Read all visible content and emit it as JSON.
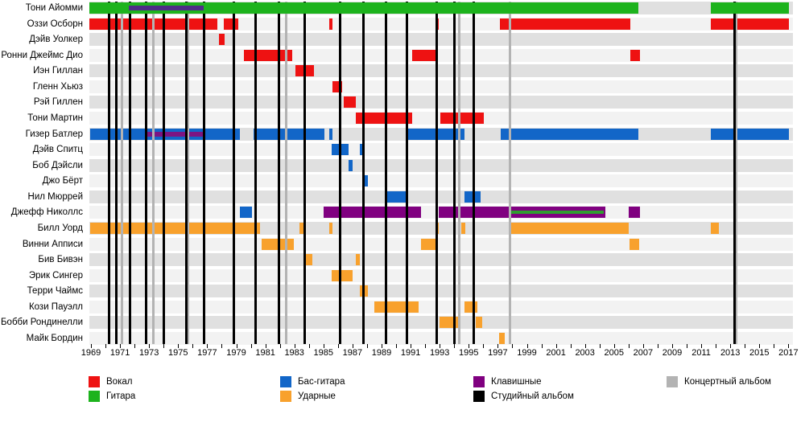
{
  "chart_data": {
    "type": "timeline",
    "title": "",
    "x_axis": {
      "start_year": 1969,
      "end_year": 2017,
      "tick_every_years": 1,
      "label_every_years": 2,
      "labels": [
        1969,
        1971,
        1973,
        1975,
        1977,
        1979,
        1981,
        1983,
        1985,
        1987,
        1989,
        1991,
        1993,
        1995,
        1997,
        1999,
        2001,
        2003,
        2005,
        2007,
        2009,
        2011,
        2013,
        2015,
        2017
      ]
    },
    "colors": {
      "vocals": "#ee1212",
      "guitar": "#1db31d",
      "bass": "#1266c8",
      "drums": "#f8a12d",
      "keyboards": "#800080",
      "keyboards_on_guitar": "#4f2d87",
      "keyboards_on_bass": "#7d1583",
      "guitar_on_keyboards": "#2f9e2f",
      "studio_album_line": "#000000",
      "live_album_line": "#b3b3b3",
      "track_odd": "#e0e0e0",
      "track_even": "#f2f2f2"
    },
    "legend": [
      {
        "label": "Вокал",
        "role": "vocals",
        "col": 0,
        "row": 0
      },
      {
        "label": "Гитара",
        "role": "guitar",
        "col": 0,
        "row": 1
      },
      {
        "label": "Бас-гитара",
        "role": "bass",
        "col": 1,
        "row": 0
      },
      {
        "label": "Ударные",
        "role": "drums",
        "col": 1,
        "row": 1
      },
      {
        "label": "Клавишные",
        "role": "keyboards",
        "col": 2,
        "row": 0
      },
      {
        "label": "Студийный альбом",
        "role": "studio_album_line",
        "col": 2,
        "row": 1
      },
      {
        "label": "Концертный альбом",
        "role": "live_album_line",
        "col": 3,
        "row": 0
      }
    ],
    "albums": {
      "studio_years": [
        1970.27,
        1970.77,
        1971.66,
        1972.77,
        1973.99,
        1975.54,
        1976.76,
        1978.81,
        1980.35,
        1981.96,
        1983.73,
        1986.12,
        1987.78,
        1989.33,
        1990.72,
        1992.82,
        1994.04,
        1995.37,
        2013.27
      ],
      "live_years": [
        1971.11,
        1973.27,
        1975.7,
        1982.41,
        1994.32,
        1997.81,
        2013.43
      ]
    },
    "rows": [
      {
        "label": "Тони Айомми",
        "segments": [
          {
            "role": "guitar",
            "from": 1968.89,
            "to": 2006.67
          },
          {
            "role": "guitar",
            "from": 2011.66,
            "to": 2017.03
          }
        ],
        "overlays": [
          {
            "role": "keyboards",
            "color": "keyboards_on_guitar",
            "from": 1971.6,
            "to": 1976.76
          }
        ],
        "on_top_of_lines": true
      },
      {
        "label": "Оззи Осборн",
        "segments": [
          {
            "role": "vocals",
            "from": 1968.89,
            "to": 1977.7
          },
          {
            "role": "vocals",
            "from": 1978.14,
            "to": 1979.14
          },
          {
            "role": "vocals",
            "from": 1985.4,
            "to": 1985.62
          },
          {
            "role": "vocals",
            "from": 1992.71,
            "to": 1992.93
          },
          {
            "role": "vocals",
            "from": 1997.14,
            "to": 2006.12
          },
          {
            "role": "vocals",
            "from": 2011.66,
            "to": 2017.03
          }
        ]
      },
      {
        "label": "Дэйв Уолкер",
        "segments": [
          {
            "role": "vocals",
            "from": 1977.81,
            "to": 1978.2
          }
        ]
      },
      {
        "label": "Ронни Джеймс Дио",
        "segments": [
          {
            "role": "vocals",
            "from": 1979.53,
            "to": 1982.85
          },
          {
            "role": "vocals",
            "from": 1991.1,
            "to": 1992.82
          },
          {
            "role": "vocals",
            "from": 2006.12,
            "to": 2006.78
          }
        ]
      },
      {
        "label": "Иэн Гиллан",
        "segments": [
          {
            "role": "vocals",
            "from": 1983.07,
            "to": 1984.34
          }
        ]
      },
      {
        "label": "Гленн Хьюз",
        "segments": [
          {
            "role": "vocals",
            "from": 1985.62,
            "to": 1986.28
          }
        ]
      },
      {
        "label": "Рэй Гиллен",
        "segments": [
          {
            "role": "vocals",
            "from": 1986.4,
            "to": 1987.23
          }
        ]
      },
      {
        "label": "Тони Мартин",
        "segments": [
          {
            "role": "vocals",
            "from": 1987.23,
            "to": 1991.1
          },
          {
            "role": "vocals",
            "from": 1993.04,
            "to": 1996.03
          }
        ]
      },
      {
        "label": "Гизер Батлер",
        "segments": [
          {
            "role": "bass",
            "from": 1968.94,
            "to": 1979.25
          },
          {
            "role": "bass",
            "from": 1980.19,
            "to": 1985.07
          },
          {
            "role": "bass",
            "from": 1985.4,
            "to": 1985.62
          },
          {
            "role": "bass",
            "from": 1990.83,
            "to": 1994.7
          },
          {
            "role": "bass",
            "from": 1997.2,
            "to": 2006.67
          },
          {
            "role": "bass",
            "from": 2011.66,
            "to": 2017.03
          }
        ],
        "overlays": [
          {
            "role": "keyboards",
            "color": "keyboards_on_bass",
            "from": 1972.82,
            "to": 1976.76
          }
        ]
      },
      {
        "label": "Дэйв Спитц",
        "segments": [
          {
            "role": "bass",
            "from": 1985.56,
            "to": 1986.73
          },
          {
            "role": "bass",
            "from": 1987.5,
            "to": 1987.72
          }
        ]
      },
      {
        "label": "Боб Дэйсли",
        "segments": [
          {
            "role": "bass",
            "from": 1986.73,
            "to": 1987.01
          }
        ]
      },
      {
        "label": "Джо Бёрт",
        "segments": [
          {
            "role": "bass",
            "from": 1987.78,
            "to": 1988.05
          }
        ]
      },
      {
        "label": "Нил Мюррей",
        "segments": [
          {
            "role": "bass",
            "from": 1989.33,
            "to": 1990.83
          },
          {
            "role": "bass",
            "from": 1994.7,
            "to": 1995.81
          }
        ]
      },
      {
        "label": "Джефф Николлс",
        "segments": [
          {
            "role": "bass",
            "from": 1979.25,
            "to": 1980.08
          },
          {
            "role": "keyboards",
            "from": 1985.01,
            "to": 1991.71
          },
          {
            "role": "keyboards",
            "from": 1992.93,
            "to": 2004.4
          },
          {
            "role": "keyboards",
            "from": 2006.01,
            "to": 2006.78
          }
        ],
        "overlays": [
          {
            "role": "guitar",
            "color": "guitar_on_keyboards",
            "from": 1997.92,
            "to": 2004.29,
            "thin": true
          }
        ]
      },
      {
        "label": "Билл Уорд",
        "segments": [
          {
            "role": "drums",
            "from": 1968.94,
            "to": 1980.63
          },
          {
            "role": "drums",
            "from": 1983.35,
            "to": 1983.63
          },
          {
            "role": "drums",
            "from": 1985.4,
            "to": 1985.62
          },
          {
            "role": "drums",
            "from": 1992.71,
            "to": 1992.93
          },
          {
            "role": "drums",
            "from": 1994.48,
            "to": 1994.76
          },
          {
            "role": "drums",
            "from": 1997.81,
            "to": 2006.01
          },
          {
            "role": "drums",
            "from": 2011.66,
            "to": 2012.21
          }
        ]
      },
      {
        "label": "Винни Апписи",
        "segments": [
          {
            "role": "drums",
            "from": 1980.74,
            "to": 1982.96
          },
          {
            "role": "drums",
            "from": 1991.71,
            "to": 1992.82
          },
          {
            "role": "drums",
            "from": 2006.06,
            "to": 2006.73
          }
        ]
      },
      {
        "label": "Бив Бивэн",
        "segments": [
          {
            "role": "drums",
            "from": 1983.63,
            "to": 1984.23
          },
          {
            "role": "drums",
            "from": 1987.23,
            "to": 1987.5
          }
        ]
      },
      {
        "label": "Эрик Сингер",
        "segments": [
          {
            "role": "drums",
            "from": 1985.56,
            "to": 1987.01
          }
        ]
      },
      {
        "label": "Терри Чаймс",
        "segments": [
          {
            "role": "drums",
            "from": 1987.5,
            "to": 1988.05
          }
        ]
      },
      {
        "label": "Кози Пауэлл",
        "segments": [
          {
            "role": "drums",
            "from": 1988.5,
            "to": 1991.54
          },
          {
            "role": "drums",
            "from": 1994.7,
            "to": 1995.59
          }
        ]
      },
      {
        "label": "Бобби Рондинелли",
        "segments": [
          {
            "role": "drums",
            "from": 1992.99,
            "to": 1994.32
          },
          {
            "role": "drums",
            "from": 1995.48,
            "to": 1995.92
          }
        ]
      },
      {
        "label": "Майк Бордин",
        "segments": [
          {
            "role": "drums",
            "from": 1997.09,
            "to": 1997.48
          }
        ]
      }
    ]
  }
}
